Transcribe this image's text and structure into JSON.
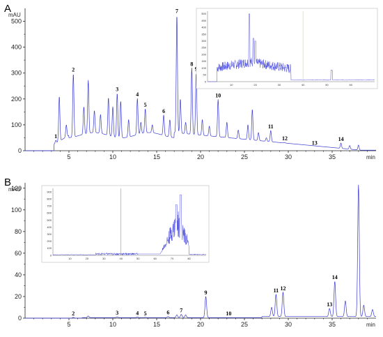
{
  "chart_data": [
    {
      "panel": "A",
      "type": "line",
      "ylabel": "mAU",
      "xlabel": "min",
      "xlim": [
        0,
        40
      ],
      "ylim": [
        0,
        550
      ],
      "xticks": [
        5,
        10,
        15,
        20,
        25,
        30,
        35
      ],
      "yticks": [
        0,
        100,
        200,
        300,
        400,
        500
      ],
      "peaks": [
        {
          "label": "1",
          "x": 3.5,
          "y": 40
        },
        {
          "label": "2",
          "x": 5.5,
          "y": 298
        },
        {
          "label": "3",
          "x": 10.5,
          "y": 222
        },
        {
          "label": "4",
          "x": 12.8,
          "y": 202
        },
        {
          "label": "5",
          "x": 13.7,
          "y": 162
        },
        {
          "label": "6",
          "x": 15.8,
          "y": 138
        },
        {
          "label": "7",
          "x": 17.3,
          "y": 525
        },
        {
          "label": "8",
          "x": 19.0,
          "y": 320
        },
        {
          "label": "9",
          "x": 19.5,
          "y": 300
        },
        {
          "label": "10",
          "x": 22.0,
          "y": 198
        },
        {
          "label": "11",
          "x": 28.0,
          "y": 78
        },
        {
          "label": "12",
          "x": 29.6,
          "y": 32
        },
        {
          "label": "13",
          "x": 33.0,
          "y": 15
        },
        {
          "label": "14",
          "x": 36.0,
          "y": 30
        }
      ],
      "extra_peaks": [
        {
          "x": 3.9,
          "y": 210
        },
        {
          "x": 4.7,
          "y": 100
        },
        {
          "x": 6.7,
          "y": 170
        },
        {
          "x": 7.2,
          "y": 272
        },
        {
          "x": 7.9,
          "y": 155
        },
        {
          "x": 8.6,
          "y": 140
        },
        {
          "x": 9.5,
          "y": 205
        },
        {
          "x": 10.0,
          "y": 170
        },
        {
          "x": 10.9,
          "y": 192
        },
        {
          "x": 11.8,
          "y": 120
        },
        {
          "x": 13.2,
          "y": 110
        },
        {
          "x": 14.5,
          "y": 100
        },
        {
          "x": 16.5,
          "y": 120
        },
        {
          "x": 17.7,
          "y": 200
        },
        {
          "x": 18.3,
          "y": 110
        },
        {
          "x": 20.2,
          "y": 120
        },
        {
          "x": 21.0,
          "y": 95
        },
        {
          "x": 23.0,
          "y": 110
        },
        {
          "x": 24.3,
          "y": 80
        },
        {
          "x": 25.4,
          "y": 100
        },
        {
          "x": 25.9,
          "y": 160
        },
        {
          "x": 26.6,
          "y": 70
        },
        {
          "x": 27.5,
          "y": 50
        },
        {
          "x": 31.5,
          "y": 20
        },
        {
          "x": 37.0,
          "y": 20
        },
        {
          "x": 38.0,
          "y": 22
        }
      ],
      "inset": {
        "xticks": [
          10,
          20,
          30,
          40,
          50,
          60
        ],
        "yticks": [
          0,
          50,
          100,
          150,
          200,
          250,
          300,
          350,
          400,
          450,
          500
        ],
        "xlim": [
          0,
          70
        ],
        "ylim": [
          0,
          520
        ]
      }
    },
    {
      "panel": "B",
      "type": "line",
      "ylabel": "mAU",
      "xlabel": "min",
      "xlim": [
        0,
        40
      ],
      "ylim": [
        0,
        125
      ],
      "xticks": [
        5,
        10,
        15,
        20,
        25,
        30,
        35
      ],
      "yticks": [
        0,
        20,
        40,
        60,
        80,
        100,
        120
      ],
      "peaks": [
        {
          "label": "2",
          "x": 5.5,
          "y": 0.8
        },
        {
          "label": "3",
          "x": 10.5,
          "y": 1.2
        },
        {
          "label": "4",
          "x": 12.8,
          "y": 1.0
        },
        {
          "label": "5",
          "x": 13.7,
          "y": 0.8
        },
        {
          "label": "6",
          "x": 16.3,
          "y": 1.5
        },
        {
          "label": "7",
          "x": 17.8,
          "y": 3.5
        },
        {
          "label": "9",
          "x": 20.6,
          "y": 20
        },
        {
          "label": "10",
          "x": 23.2,
          "y": 0.5
        },
        {
          "label": "11",
          "x": 28.6,
          "y": 22
        },
        {
          "label": "12",
          "x": 29.4,
          "y": 24
        },
        {
          "label": "13",
          "x": 34.7,
          "y": 9
        },
        {
          "label": "14",
          "x": 35.3,
          "y": 34
        }
      ],
      "extra_peaks": [
        {
          "x": 7.2,
          "y": 2
        },
        {
          "x": 17.3,
          "y": 3
        },
        {
          "x": 18.3,
          "y": 3
        },
        {
          "x": 28.1,
          "y": 10
        },
        {
          "x": 36.5,
          "y": 16
        },
        {
          "x": 38.0,
          "y": 123
        },
        {
          "x": 38.6,
          "y": 12
        },
        {
          "x": 39.6,
          "y": 8
        }
      ],
      "inset": {
        "xticks": [
          10,
          20,
          30,
          40,
          50,
          60,
          70,
          80
        ],
        "yticks": [
          0,
          100,
          200,
          300,
          400,
          500,
          600,
          700,
          800,
          900
        ],
        "xlim": [
          0,
          90
        ],
        "ylim": [
          0,
          950
        ]
      }
    }
  ]
}
